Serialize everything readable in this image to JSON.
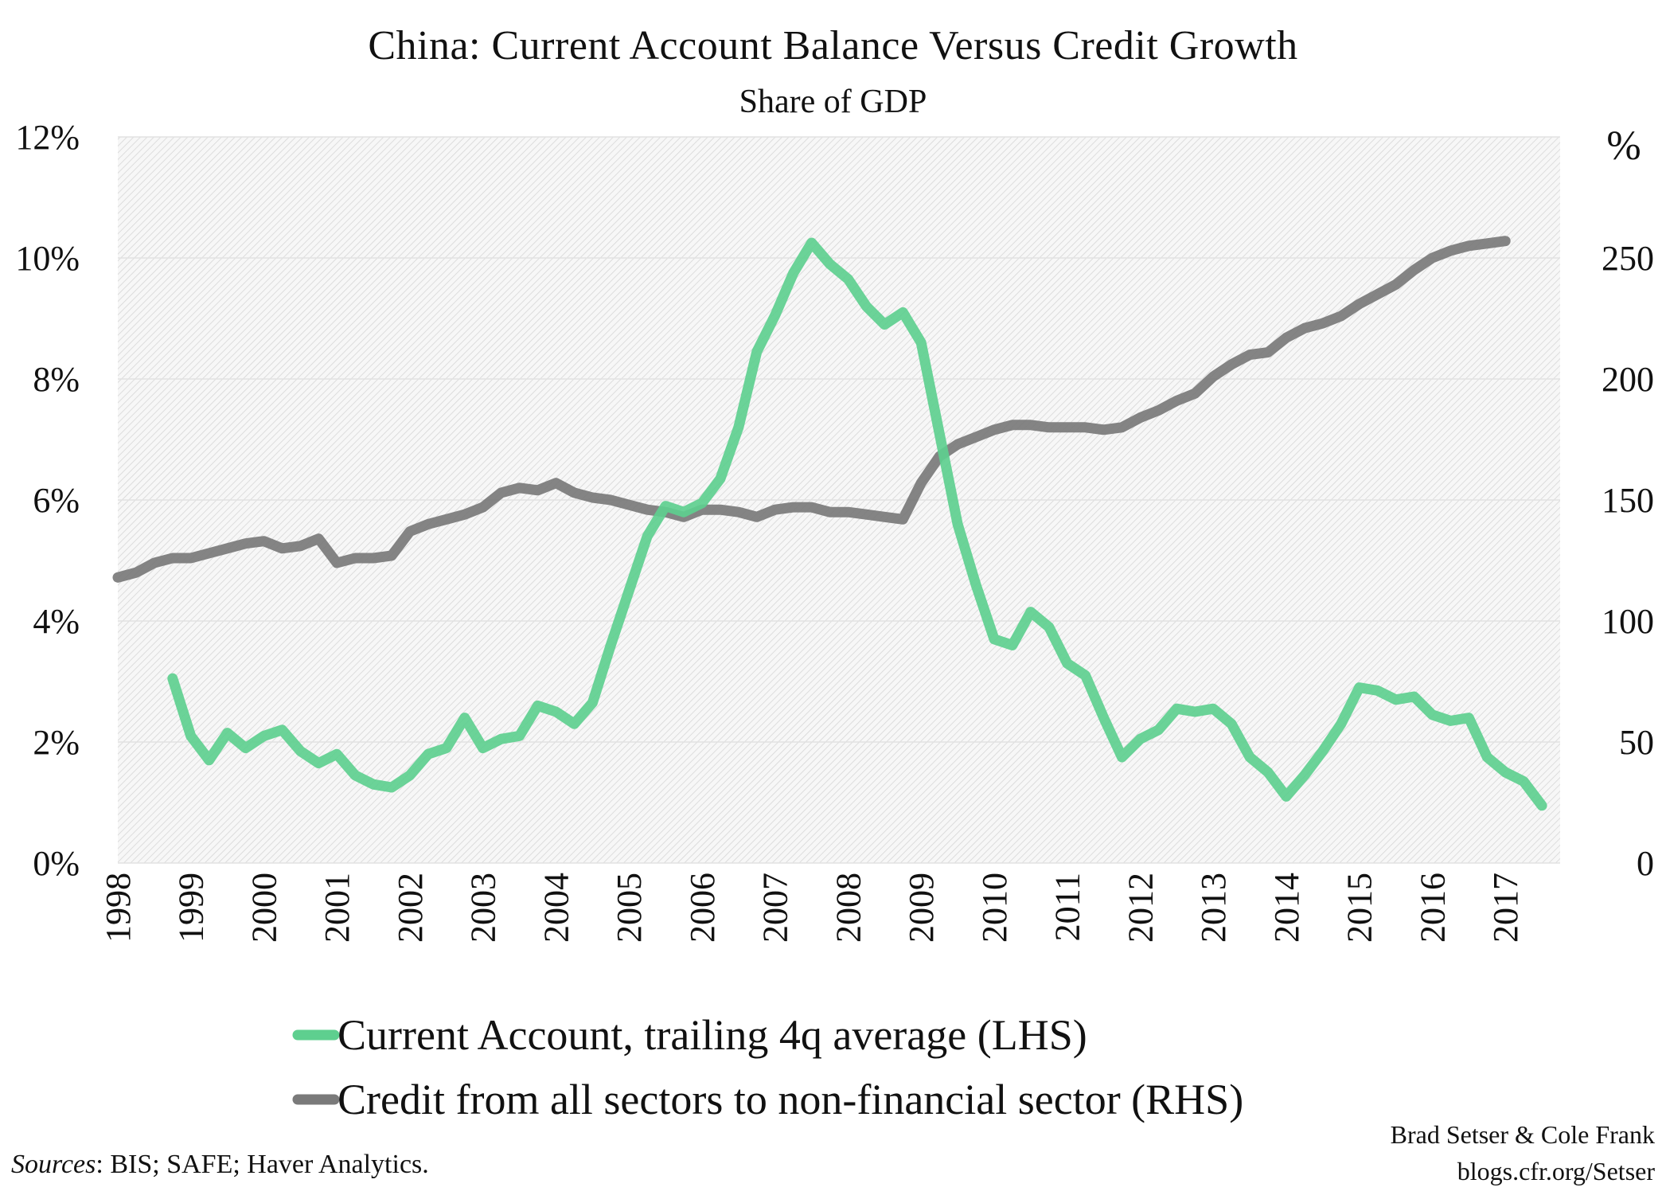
{
  "chart_data": {
    "type": "line",
    "title": "China: Current Account  Balance Versus Credit Growth",
    "subtitle": "Share of GDP",
    "x_ticks": [
      "1998",
      "1999",
      "2000",
      "2001",
      "2002",
      "2003",
      "2004",
      "2005",
      "2006",
      "2007",
      "2008",
      "2009",
      "2010",
      "2011",
      "2012",
      "2013",
      "2014",
      "2015",
      "2016",
      "2017"
    ],
    "xlim": [
      1998.0,
      2017.75
    ],
    "y_left": {
      "lim": [
        0,
        12
      ],
      "ticks": [
        "0%",
        "2%",
        "4%",
        "6%",
        "8%",
        "10%",
        "12%"
      ],
      "tick_values": [
        0,
        2,
        4,
        6,
        8,
        10,
        12
      ]
    },
    "y_right": {
      "lim": [
        0,
        300
      ],
      "label": "%",
      "ticks": [
        "0",
        "50",
        "100",
        "150",
        "200",
        "250"
      ],
      "tick_values": [
        0,
        50,
        100,
        150,
        200,
        250
      ]
    },
    "grid": true,
    "legend_position": "bottom",
    "series": [
      {
        "name": "Current Account, trailing 4q average (LHS)",
        "axis": "left",
        "color": "#5ecf8f",
        "x": [
          1998.75,
          1999.0,
          1999.25,
          1999.5,
          1999.75,
          2000.0,
          2000.25,
          2000.5,
          2000.75,
          2001.0,
          2001.25,
          2001.5,
          2001.75,
          2002.0,
          2002.25,
          2002.5,
          2002.75,
          2003.0,
          2003.25,
          2003.5,
          2003.75,
          2004.0,
          2004.25,
          2004.5,
          2004.75,
          2005.0,
          2005.25,
          2005.5,
          2005.75,
          2006.0,
          2006.25,
          2006.5,
          2006.75,
          2007.0,
          2007.25,
          2007.5,
          2007.75,
          2008.0,
          2008.25,
          2008.5,
          2008.75,
          2009.0,
          2009.25,
          2009.5,
          2009.75,
          2010.0,
          2010.25,
          2010.5,
          2010.75,
          2011.0,
          2011.25,
          2011.5,
          2011.75,
          2012.0,
          2012.25,
          2012.5,
          2012.75,
          2013.0,
          2013.25,
          2013.5,
          2013.75,
          2014.0,
          2014.25,
          2014.5,
          2014.75,
          2015.0,
          2015.25,
          2015.5,
          2015.75,
          2016.0,
          2016.25,
          2016.5,
          2016.75,
          2017.0,
          2017.25,
          2017.5
        ],
        "values": [
          3.05,
          2.1,
          1.7,
          2.15,
          1.9,
          2.1,
          2.2,
          1.85,
          1.65,
          1.8,
          1.45,
          1.3,
          1.25,
          1.45,
          1.8,
          1.9,
          2.4,
          1.9,
          2.05,
          2.1,
          2.6,
          2.5,
          2.3,
          2.65,
          3.6,
          4.5,
          5.4,
          5.9,
          5.8,
          5.95,
          6.35,
          7.2,
          8.45,
          9.05,
          9.75,
          10.25,
          9.9,
          9.65,
          9.2,
          8.9,
          9.1,
          8.6,
          7.1,
          5.6,
          4.6,
          3.7,
          3.6,
          4.15,
          3.9,
          3.3,
          3.1,
          2.4,
          1.75,
          2.05,
          2.2,
          2.55,
          2.5,
          2.55,
          2.3,
          1.75,
          1.5,
          1.1,
          1.45,
          1.85,
          2.3,
          2.9,
          2.85,
          2.7,
          2.75,
          2.45,
          2.35,
          2.4,
          1.75,
          1.5,
          1.35,
          0.95
        ]
      },
      {
        "name": "Credit from all sectors to non-financial sector (RHS)",
        "axis": "right",
        "color": "#7a7a7a",
        "x": [
          1998.0,
          1998.25,
          1998.5,
          1998.75,
          1999.0,
          1999.25,
          1999.5,
          1999.75,
          2000.0,
          2000.25,
          2000.5,
          2000.75,
          2001.0,
          2001.25,
          2001.5,
          2001.75,
          2002.0,
          2002.25,
          2002.5,
          2002.75,
          2003.0,
          2003.25,
          2003.5,
          2003.75,
          2004.0,
          2004.25,
          2004.5,
          2004.75,
          2005.0,
          2005.25,
          2005.5,
          2005.75,
          2006.0,
          2006.25,
          2006.5,
          2006.75,
          2007.0,
          2007.25,
          2007.5,
          2007.75,
          2008.0,
          2008.25,
          2008.5,
          2008.75,
          2009.0,
          2009.25,
          2009.5,
          2009.75,
          2010.0,
          2010.25,
          2010.5,
          2010.75,
          2011.0,
          2011.25,
          2011.5,
          2011.75,
          2012.0,
          2012.25,
          2012.5,
          2012.75,
          2013.0,
          2013.25,
          2013.5,
          2013.75,
          2014.0,
          2014.25,
          2014.5,
          2014.75,
          2015.0,
          2015.25,
          2015.5,
          2015.75,
          2016.0,
          2016.25,
          2016.5,
          2016.75,
          2017.0
        ],
        "values": [
          118,
          120,
          124,
          126,
          126,
          128,
          130,
          132,
          133,
          130,
          131,
          134,
          124,
          126,
          126,
          127,
          137,
          140,
          142,
          144,
          147,
          153,
          155,
          154,
          157,
          153,
          151,
          150,
          148,
          146,
          145,
          143,
          146,
          146,
          145,
          143,
          146,
          147,
          147,
          145,
          145,
          144,
          143,
          142,
          157,
          168,
          173,
          176,
          179,
          181,
          181,
          180,
          180,
          180,
          179,
          180,
          184,
          187,
          191,
          194,
          201,
          206,
          210,
          211,
          217,
          221,
          223,
          226,
          231,
          235,
          239,
          245,
          250,
          253,
          255,
          256,
          257
        ]
      }
    ]
  },
  "legend": {
    "items": [
      {
        "label": "Current Account, trailing 4q average (LHS)",
        "color": "#5ecf8f"
      },
      {
        "label": "Credit from all sectors to non-financial sector (RHS)",
        "color": "#7a7a7a"
      }
    ]
  },
  "footer": {
    "sources_prefix": "Sources",
    "sources_text": ": BIS; SAFE; Haver Analytics.",
    "credit_line1": "Brad Setser & Cole Frank",
    "credit_line2": "blogs.cfr.org/Setser"
  }
}
